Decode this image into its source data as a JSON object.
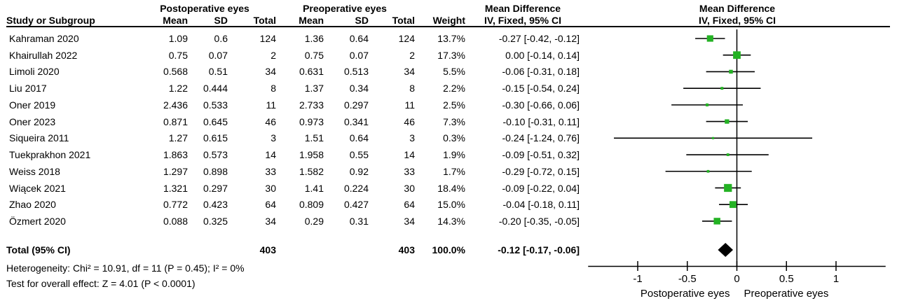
{
  "header": {
    "group1": "Postoperative eyes",
    "group2": "Preoperative eyes",
    "md_title": "Mean Difference",
    "md_sub": "IV, Fixed, 95% CI",
    "plot_title": "Mean Difference",
    "plot_sub": "IV, Fixed, 95% CI",
    "cols": [
      "Study or Subgroup",
      "Mean",
      "SD",
      "Total",
      "Mean",
      "SD",
      "Total",
      "Weight"
    ]
  },
  "studies": [
    {
      "name": "Kahraman 2020",
      "mean1": "1.09",
      "sd1": "0.6",
      "n1": "124",
      "mean2": "1.36",
      "sd2": "0.64",
      "n2": "124",
      "weight": "13.7%",
      "md_label": "-0.27 [-0.42, -0.12]",
      "md": -0.27,
      "lo": -0.42,
      "hi": -0.12,
      "w": 13.7
    },
    {
      "name": "Khairullah 2022",
      "mean1": "0.75",
      "sd1": "0.07",
      "n1": "2",
      "mean2": "0.75",
      "sd2": "0.07",
      "n2": "2",
      "weight": "17.3%",
      "md_label": "0.00 [-0.14, 0.14]",
      "md": 0.0,
      "lo": -0.14,
      "hi": 0.14,
      "w": 17.3
    },
    {
      "name": "Limoli 2020",
      "mean1": "0.568",
      "sd1": "0.51",
      "n1": "34",
      "mean2": "0.631",
      "sd2": "0.513",
      "n2": "34",
      "weight": "5.5%",
      "md_label": "-0.06 [-0.31, 0.18]",
      "md": -0.06,
      "lo": -0.31,
      "hi": 0.18,
      "w": 5.5
    },
    {
      "name": "Liu 2017",
      "mean1": "1.22",
      "sd1": "0.444",
      "n1": "8",
      "mean2": "1.37",
      "sd2": "0.34",
      "n2": "8",
      "weight": "2.2%",
      "md_label": "-0.15 [-0.54, 0.24]",
      "md": -0.15,
      "lo": -0.54,
      "hi": 0.24,
      "w": 2.2
    },
    {
      "name": "Oner 2019",
      "mean1": "2.436",
      "sd1": "0.533",
      "n1": "11",
      "mean2": "2.733",
      "sd2": "0.297",
      "n2": "11",
      "weight": "2.5%",
      "md_label": "-0.30 [-0.66, 0.06]",
      "md": -0.3,
      "lo": -0.66,
      "hi": 0.06,
      "w": 2.5
    },
    {
      "name": "Oner 2023",
      "mean1": "0.871",
      "sd1": "0.645",
      "n1": "46",
      "mean2": "0.973",
      "sd2": "0.341",
      "n2": "46",
      "weight": "7.3%",
      "md_label": "-0.10 [-0.31, 0.11]",
      "md": -0.1,
      "lo": -0.31,
      "hi": 0.11,
      "w": 7.3
    },
    {
      "name": "Siqueira 2011",
      "mean1": "1.27",
      "sd1": "0.615",
      "n1": "3",
      "mean2": "1.51",
      "sd2": "0.64",
      "n2": "3",
      "weight": "0.3%",
      "md_label": "-0.24 [-1.24, 0.76]",
      "md": -0.24,
      "lo": -1.24,
      "hi": 0.76,
      "w": 0.3
    },
    {
      "name": "Tuekprakhon 2021",
      "mean1": "1.863",
      "sd1": "0.573",
      "n1": "14",
      "mean2": "1.958",
      "sd2": "0.55",
      "n2": "14",
      "weight": "1.9%",
      "md_label": "-0.09 [-0.51, 0.32]",
      "md": -0.09,
      "lo": -0.51,
      "hi": 0.32,
      "w": 1.9
    },
    {
      "name": "Weiss 2018",
      "mean1": "1.297",
      "sd1": "0.898",
      "n1": "33",
      "mean2": "1.582",
      "sd2": "0.92",
      "n2": "33",
      "weight": "1.7%",
      "md_label": "-0.29 [-0.72, 0.15]",
      "md": -0.29,
      "lo": -0.72,
      "hi": 0.15,
      "w": 1.7
    },
    {
      "name": "Wiącek 2021",
      "mean1": "1.321",
      "sd1": "0.297",
      "n1": "30",
      "mean2": "1.41",
      "sd2": "0.224",
      "n2": "30",
      "weight": "18.4%",
      "md_label": "-0.09 [-0.22, 0.04]",
      "md": -0.09,
      "lo": -0.22,
      "hi": 0.04,
      "w": 18.4
    },
    {
      "name": "Zhao 2020",
      "mean1": "0.772",
      "sd1": "0.423",
      "n1": "64",
      "mean2": "0.809",
      "sd2": "0.427",
      "n2": "64",
      "weight": "15.0%",
      "md_label": "-0.04 [-0.18, 0.11]",
      "md": -0.04,
      "lo": -0.18,
      "hi": 0.11,
      "w": 15.0
    },
    {
      "name": "Özmert 2020",
      "mean1": "0.088",
      "sd1": "0.325",
      "n1": "34",
      "mean2": "0.29",
      "sd2": "0.31",
      "n2": "34",
      "weight": "14.3%",
      "md_label": "-0.20 [-0.35, -0.05]",
      "md": -0.2,
      "lo": -0.35,
      "hi": -0.05,
      "w": 14.3
    }
  ],
  "total": {
    "label": "Total (95% CI)",
    "n1": "403",
    "n2": "403",
    "weight": "100.0%",
    "md_label": "-0.12 [-0.17, -0.06]",
    "md": -0.12,
    "lo": -0.17,
    "hi": -0.06
  },
  "footnotes": {
    "heterogeneity": "Heterogeneity: Chi² = 10.91, df = 11 (P = 0.45); I² = 0%",
    "overall": "Test for overall effect: Z = 4.01 (P < 0.0001)"
  },
  "axis": {
    "min": -1.5,
    "max": 1.5,
    "ticks": [
      -1,
      -0.5,
      0,
      0.5,
      1
    ],
    "tick_labels": [
      "-1",
      "-0.5",
      "0",
      "0.5",
      "1"
    ],
    "left_label": "Postoperative eyes",
    "right_label": "Preoperative eyes"
  },
  "colors": {
    "marker": "#24b224",
    "line": "#000000",
    "diamond": "#000000"
  },
  "chart_data": {
    "type": "forest",
    "title": "Mean Difference",
    "effect_measure": "IV, Fixed, 95% CI",
    "group1": "Postoperative eyes",
    "group2": "Preoperative eyes",
    "xlim": [
      -1.5,
      1.5
    ],
    "x_ticks": [
      -1,
      -0.5,
      0,
      0.5,
      1
    ],
    "favours_left": "Postoperative eyes",
    "favours_right": "Preoperative eyes",
    "studies": [
      {
        "name": "Kahraman 2020",
        "md": -0.27,
        "ci": [
          -0.42,
          -0.12
        ],
        "weight_pct": 13.7
      },
      {
        "name": "Khairullah 2022",
        "md": 0.0,
        "ci": [
          -0.14,
          0.14
        ],
        "weight_pct": 17.3
      },
      {
        "name": "Limoli 2020",
        "md": -0.06,
        "ci": [
          -0.31,
          0.18
        ],
        "weight_pct": 5.5
      },
      {
        "name": "Liu 2017",
        "md": -0.15,
        "ci": [
          -0.54,
          0.24
        ],
        "weight_pct": 2.2
      },
      {
        "name": "Oner 2019",
        "md": -0.3,
        "ci": [
          -0.66,
          0.06
        ],
        "weight_pct": 2.5
      },
      {
        "name": "Oner 2023",
        "md": -0.1,
        "ci": [
          -0.31,
          0.11
        ],
        "weight_pct": 7.3
      },
      {
        "name": "Siqueira 2011",
        "md": -0.24,
        "ci": [
          -1.24,
          0.76
        ],
        "weight_pct": 0.3
      },
      {
        "name": "Tuekprakhon 2021",
        "md": -0.09,
        "ci": [
          -0.51,
          0.32
        ],
        "weight_pct": 1.9
      },
      {
        "name": "Weiss 2018",
        "md": -0.29,
        "ci": [
          -0.72,
          0.15
        ],
        "weight_pct": 1.7
      },
      {
        "name": "Wiącek 2021",
        "md": -0.09,
        "ci": [
          -0.22,
          0.04
        ],
        "weight_pct": 18.4
      },
      {
        "name": "Zhao 2020",
        "md": -0.04,
        "ci": [
          -0.18,
          0.11
        ],
        "weight_pct": 15.0
      },
      {
        "name": "Özmert 2020",
        "md": -0.2,
        "ci": [
          -0.35,
          -0.05
        ],
        "weight_pct": 14.3
      }
    ],
    "total": {
      "name": "Total (95% CI)",
      "md": -0.12,
      "ci": [
        -0.17,
        -0.06
      ],
      "weight_pct": 100.0,
      "n1": 403,
      "n2": 403
    },
    "heterogeneity": "Chi² = 10.91, df = 11 (P = 0.45); I² = 0%",
    "overall_effect": "Z = 4.01 (P < 0.0001)"
  }
}
